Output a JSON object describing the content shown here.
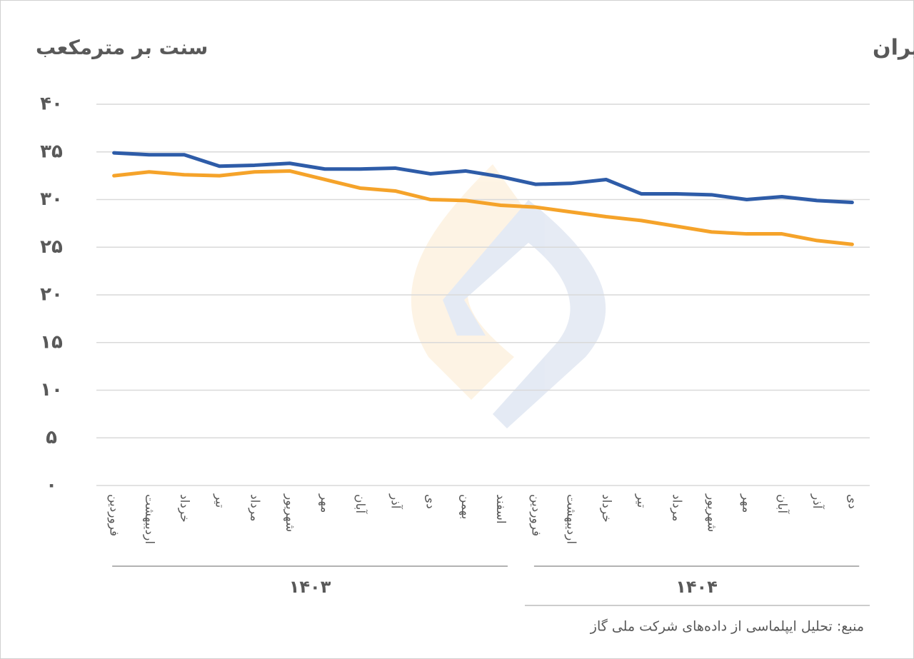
{
  "chart_data": {
    "type": "line",
    "title": "قیمت گاز صادراتی ایران",
    "y_label": "سنت بر مترمکعب",
    "source": "منبع: تحلیل ایپلماسی از داده‌های شرکت ملی گاز",
    "categories": [
      "فروردین",
      "اردیبهشت",
      "خرداد",
      "تیر",
      "مرداد",
      "شهریور",
      "مهر",
      "آبان",
      "آذر",
      "دی",
      "بهمن",
      "اسفند",
      "فروردین",
      "اردیبهشت",
      "خرداد",
      "تیر",
      "مرداد",
      "شهریور",
      "مهر",
      "آبان",
      "آذر",
      "دی"
    ],
    "x_groups": [
      "۱۴۰۳",
      "۱۴۰۴"
    ],
    "series": [
      {
        "color": "#2e5ca8",
        "values": [
          34.9,
          34.7,
          34.7,
          33.5,
          33.6,
          33.8,
          33.2,
          33.2,
          33.3,
          32.7,
          33.0,
          32.4,
          31.6,
          31.7,
          32.1,
          30.6,
          30.6,
          30.5,
          30.0,
          30.3,
          29.9,
          29.7
        ]
      },
      {
        "color": "#f5a32a",
        "values": [
          32.5,
          32.9,
          32.6,
          32.5,
          32.9,
          33.0,
          32.1,
          31.2,
          30.9,
          30.0,
          29.9,
          29.4,
          29.2,
          28.7,
          28.2,
          27.8,
          27.2,
          26.6,
          26.4,
          26.4,
          25.7,
          25.3
        ]
      }
    ],
    "ylim": [
      0,
      40
    ],
    "yticks": [
      {
        "value": 0,
        "label": "۰"
      },
      {
        "value": 5,
        "label": "۵"
      },
      {
        "value": 10,
        "label": "۱۰"
      },
      {
        "value": 15,
        "label": "۱۵"
      },
      {
        "value": 20,
        "label": "۲۰"
      },
      {
        "value": 25,
        "label": "۲۵"
      },
      {
        "value": 30,
        "label": "۳۰"
      },
      {
        "value": 35,
        "label": "۳۵"
      },
      {
        "value": 40,
        "label": "۴۰"
      }
    ],
    "grid": true
  }
}
